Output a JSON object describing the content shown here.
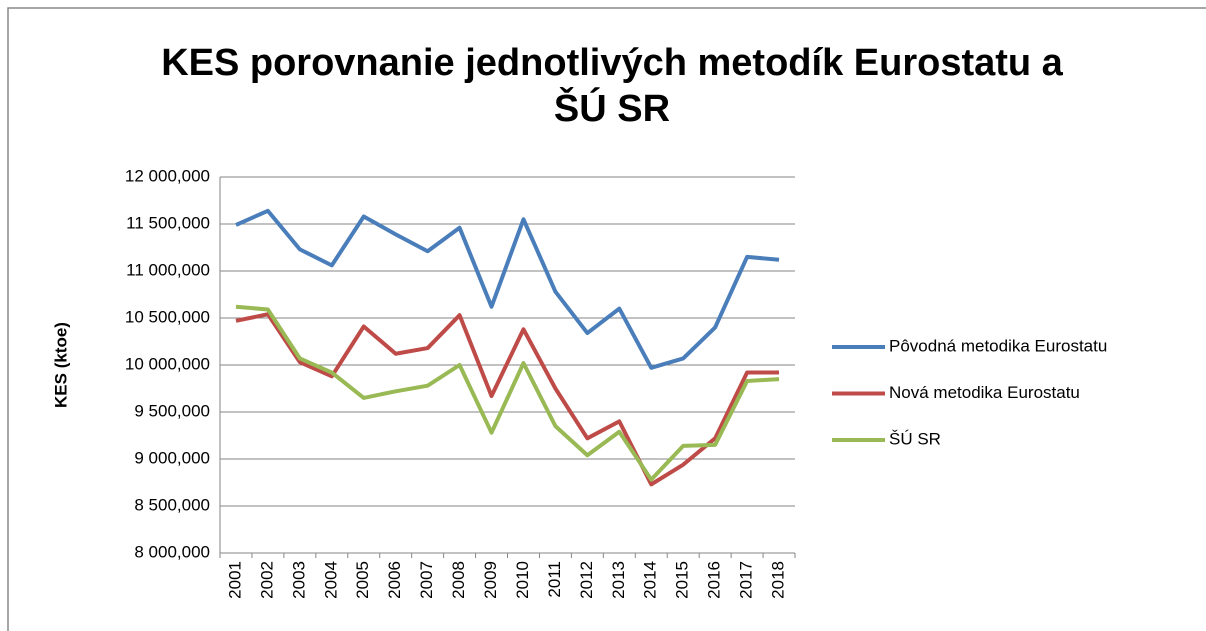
{
  "chart_data": {
    "type": "line",
    "title": "KES porovnanie jednotlivých metodík Eurostatu a ŠÚ SR",
    "y_label": "KES (ktoe)",
    "categories": [
      "2001",
      "2002",
      "2003",
      "2004",
      "2005",
      "2006",
      "2007",
      "2008",
      "2009",
      "2010",
      "2011",
      "2012",
      "2013",
      "2014",
      "2015",
      "2016",
      "2017",
      "2018"
    ],
    "series": [
      {
        "name": "Pôvodná metodika Eurostatu",
        "color": "#4a7ebb",
        "values": [
          11490000,
          11640000,
          11230000,
          11060000,
          11580000,
          11390000,
          11210000,
          11460000,
          10620000,
          11550000,
          10780000,
          10340000,
          10600000,
          9970000,
          10070000,
          10400000,
          11150000,
          11120000
        ]
      },
      {
        "name": "Nová metodika Eurostatu",
        "color": "#be4b48",
        "values": [
          10470000,
          10540000,
          10030000,
          9880000,
          10410000,
          10120000,
          10180000,
          10530000,
          9670000,
          10380000,
          9750000,
          9220000,
          9400000,
          8730000,
          8940000,
          9220000,
          9920000,
          9920000
        ]
      },
      {
        "name": "ŠÚ SR",
        "color": "#98b954",
        "values": [
          10620000,
          10590000,
          10070000,
          9920000,
          9650000,
          9720000,
          9780000,
          10000000,
          9280000,
          10020000,
          9350000,
          9040000,
          9290000,
          8780000,
          9140000,
          9150000,
          9830000,
          9850000
        ]
      }
    ],
    "ylim": [
      8000000,
      12000000
    ],
    "yticks": [
      {
        "value": 8000000,
        "label": "8 000,000"
      },
      {
        "value": 8500000,
        "label": "8 500,000"
      },
      {
        "value": 9000000,
        "label": "9 000,000"
      },
      {
        "value": 9500000,
        "label": "9 500,000"
      },
      {
        "value": 10000000,
        "label": "10 000,000"
      },
      {
        "value": 10500000,
        "label": "10 500,000"
      },
      {
        "value": 11000000,
        "label": "11 000,000"
      },
      {
        "value": 11500000,
        "label": "11 500,000"
      },
      {
        "value": 12000000,
        "label": "12 000,000"
      }
    ],
    "grid": true,
    "legend": "right"
  }
}
